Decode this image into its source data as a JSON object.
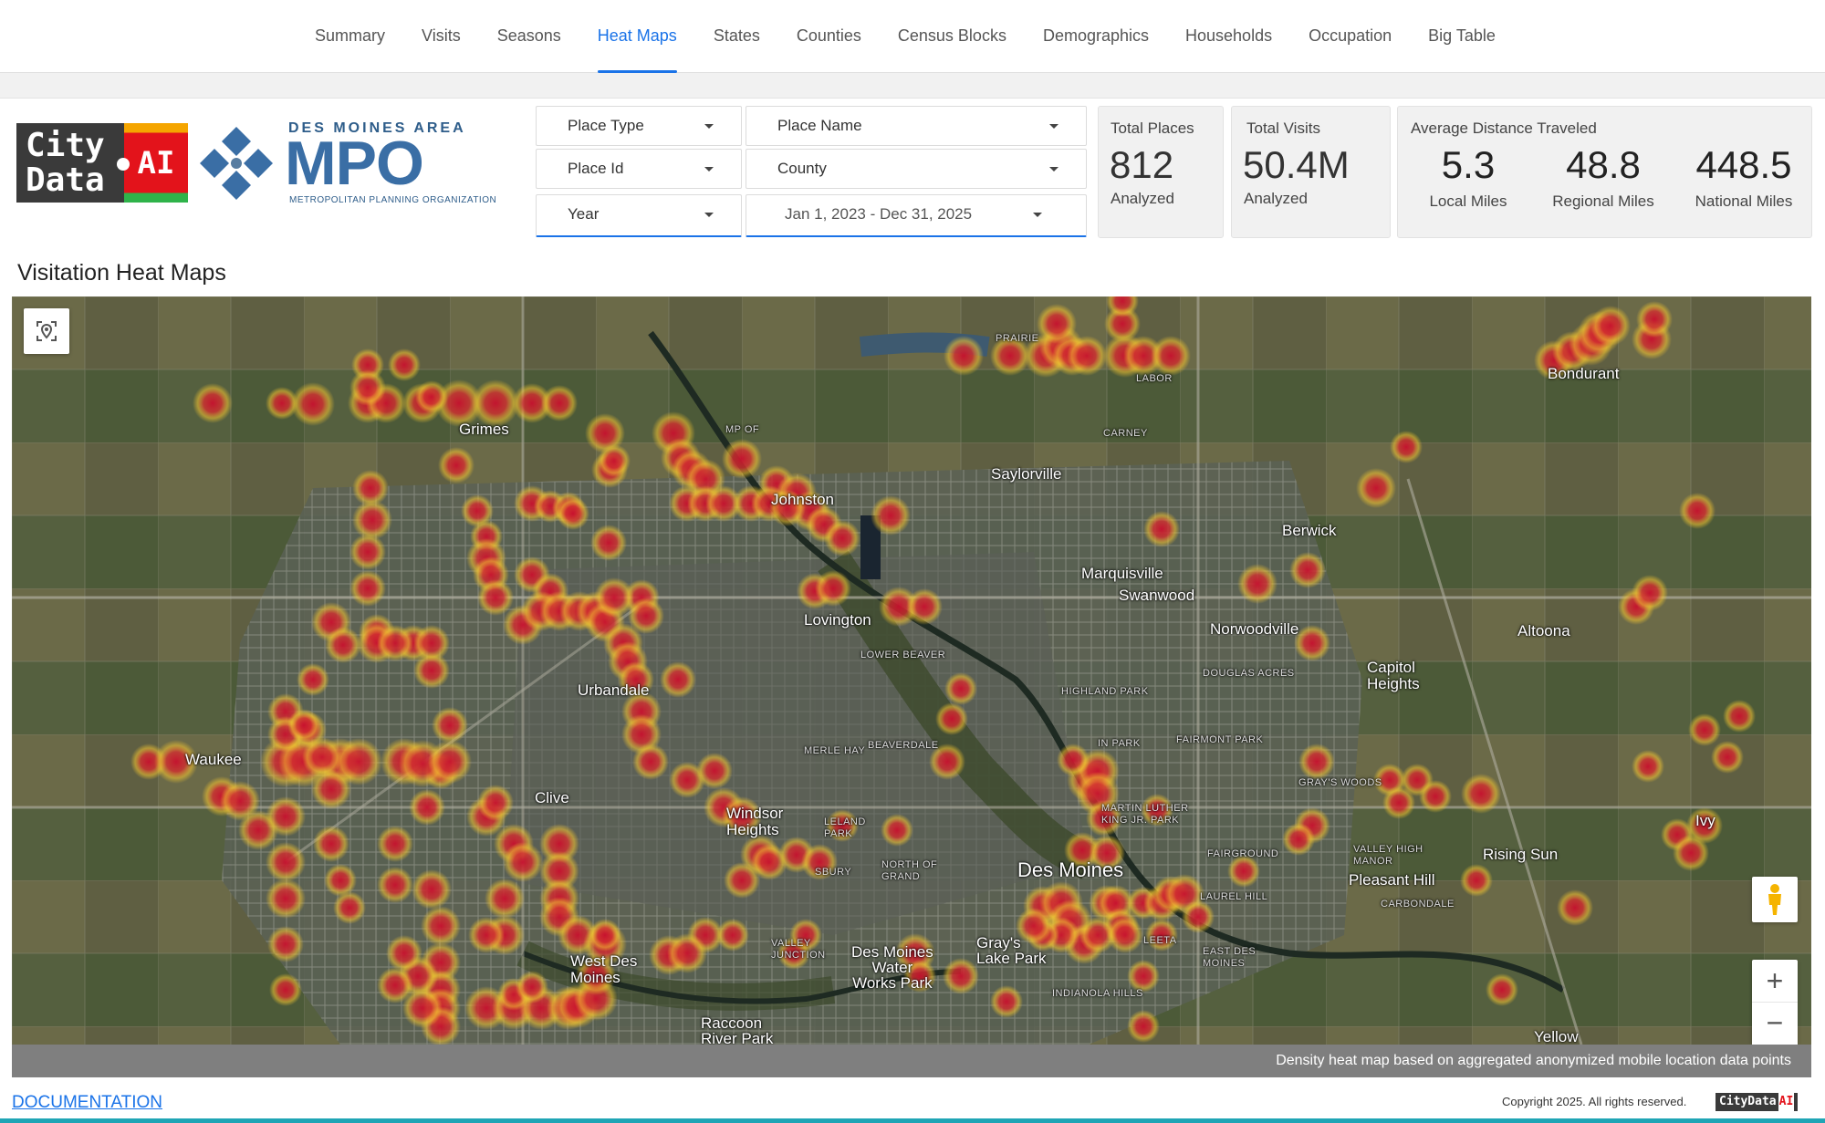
{
  "nav": {
    "tabs": [
      {
        "label": "Summary"
      },
      {
        "label": "Visits"
      },
      {
        "label": "Seasons"
      },
      {
        "label": "Heat Maps",
        "active": true
      },
      {
        "label": "States"
      },
      {
        "label": "Counties"
      },
      {
        "label": "Census Blocks"
      },
      {
        "label": "Demographics"
      },
      {
        "label": "Households"
      },
      {
        "label": "Occupation"
      },
      {
        "label": "Big Table"
      }
    ]
  },
  "logos": {
    "citydata_line1": "City",
    "citydata_line2": "Data",
    "citydata_ai": "AI",
    "mpo_top": "DES MOINES AREA",
    "mpo_big": "MPO",
    "mpo_sub": "METROPOLITAN PLANNING ORGANIZATION"
  },
  "filters": {
    "place_type": "Place Type",
    "place_name": "Place Name",
    "place_id": "Place Id",
    "county": "County",
    "year": "Year",
    "date_range": "Jan 1, 2023 - Dec 31, 2025"
  },
  "stats": {
    "total_places": {
      "title": "Total Places",
      "value": "812",
      "sub": "Analyzed"
    },
    "total_visits": {
      "title": "Total Visits",
      "value": "50.4M",
      "sub": "Analyzed"
    },
    "distance": {
      "title": "Average Distance Traveled",
      "local": {
        "value": "5.3",
        "label": "Local Miles"
      },
      "regional": {
        "value": "48.8",
        "label": "Regional Miles"
      },
      "national": {
        "value": "448.5",
        "label": "National Miles"
      }
    }
  },
  "section_title": "Visitation Heat Maps",
  "map": {
    "labels": {
      "grimes": "Grimes",
      "johnston": "Johnston",
      "saylorville": "Saylorville",
      "berwick": "Berwick",
      "bondurant": "Bondurant",
      "marquisville": "Marquisville",
      "swanwood": "Swanwood",
      "norwoodville": "Norwoodville",
      "lovington": "Lovington",
      "altoona": "Altoona",
      "capitol_heights": "Capitol\nHeights",
      "urbandale": "Urbandale",
      "waukee": "Waukee",
      "clive": "Clive",
      "windsor_heights": "Windsor\nHeights",
      "des_moines": "Des Moines",
      "pleasant_hill": "Pleasant Hill",
      "rising_sun": "Rising Sun",
      "ivy": "Ivy",
      "west_des_moines": "West Des\nMoines",
      "water_works": "Des Moines\nWater\nWorks Park",
      "grays_lake": "Gray's\nLake Park",
      "raccoon": "Raccoon\nRiver Park",
      "yellow": "Yellow",
      "prairie": "PRAIRIE",
      "labor": "LABOR",
      "carney": "CARNEY",
      "mpo_small": "MP OF",
      "lower_beaver": "LOWER BEAVER",
      "highland_park": "HIGHLAND PARK",
      "douglas_acres": "DOUGLAS ACRES",
      "beaverdale": "BEAVERDALE",
      "merle_hay": "MERLE HAY",
      "fairmont_park": "FAIRMONT PARK",
      "grays_woods": "GRAY'S WOODS",
      "mlk_park": "MARTIN LUTHER\nKING JR. PARK",
      "fairground": "FAIRGROUND",
      "valley_high": "VALLEY HIGH\nMANOR",
      "carbondale": "CARBONDALE",
      "laurel_hill": "LAUREL HILL",
      "east_des_moines": "EAST DES\nMOINES",
      "indianola_hills": "INDIANOLA HILLS",
      "leland_park": "LELAND\nPARK",
      "north_of_grand": "NORTH OF\nGRAND",
      "valley_junction": "VALLEY\nJUNCTION",
      "sunbury": "SBURY",
      "leet": "LEETA",
      "river_bend": "IN PARK"
    },
    "icons": {
      "locate": "locate-icon",
      "pegman": "pegman-icon",
      "zoom_in": "+",
      "zoom_out": "−"
    },
    "caption": "Density heat map based on aggregated anonymized mobile location data points"
  },
  "footer": {
    "documentation": "DOCUMENTATION",
    "copyright": "Copyright 2025. All rights reserved.",
    "logo_text": "CityData",
    "logo_ai": "AI"
  }
}
